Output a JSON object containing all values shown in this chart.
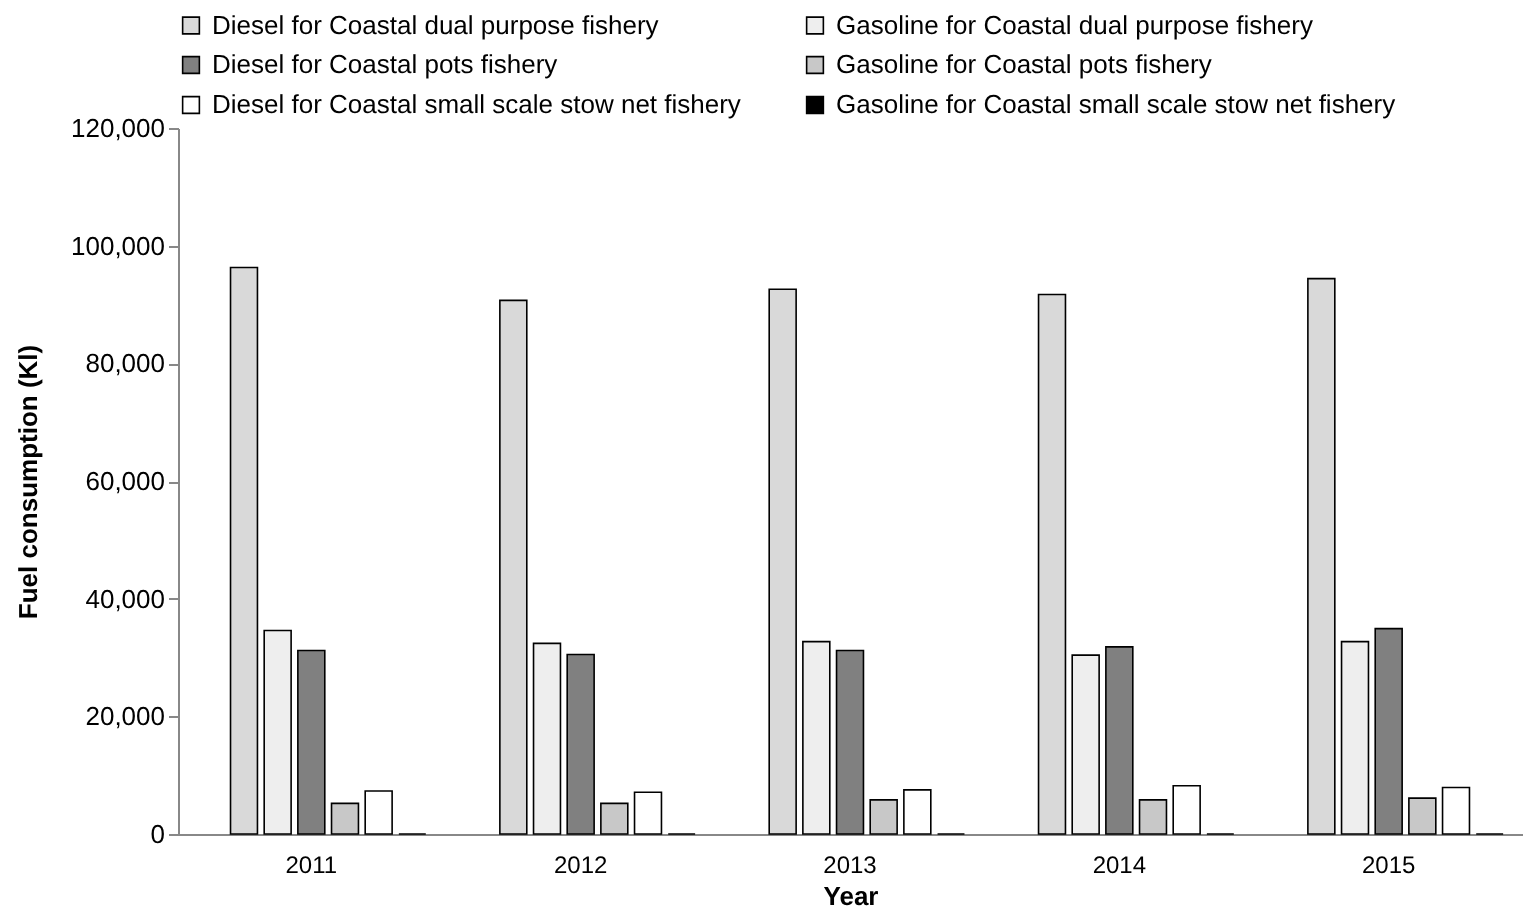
{
  "chart_data": {
    "type": "bar",
    "xlabel": "Year",
    "ylabel": "Fuel consumption (Kl)",
    "categories": [
      "2011",
      "2012",
      "2013",
      "2014",
      "2015"
    ],
    "series": [
      {
        "name": "Diesel for Coastal dual purpose fishery",
        "color": "#d9d9d9",
        "values": [
          96300,
          90700,
          92600,
          91700,
          94400
        ]
      },
      {
        "name": "Gasoline for Coastal dual purpose fishery",
        "color": "#eeeeee",
        "values": [
          34600,
          32400,
          32700,
          30400,
          32700
        ]
      },
      {
        "name": "Diesel for Coastal pots fishery",
        "color": "#808080",
        "values": [
          31200,
          30500,
          31200,
          31800,
          34900
        ]
      },
      {
        "name": "Gasoline for Coastal pots fishery",
        "color": "#c8c8c8",
        "values": [
          5200,
          5200,
          5800,
          5800,
          6100
        ]
      },
      {
        "name": "Diesel for Coastal small scale stow net fishery",
        "color": "#ffffff",
        "values": [
          7300,
          7100,
          7500,
          8200,
          7900
        ]
      },
      {
        "name": "Gasoline for Coastal small scale stow net fishery",
        "color": "#000000",
        "values": [
          0,
          0,
          0,
          0,
          0
        ]
      }
    ],
    "ylim": [
      0,
      120000
    ],
    "yticks": [
      0,
      {
        "value": 20000,
        "label": "20,000"
      },
      {
        "value": 40000,
        "label": "40,000"
      },
      {
        "value": 60000,
        "label": "60,000"
      },
      {
        "value": 80000,
        "label": "80,000"
      },
      {
        "value": 100000,
        "label": "100,000"
      },
      {
        "value": 120000,
        "label": "120,000"
      }
    ],
    "grid": false,
    "legend": "top"
  }
}
